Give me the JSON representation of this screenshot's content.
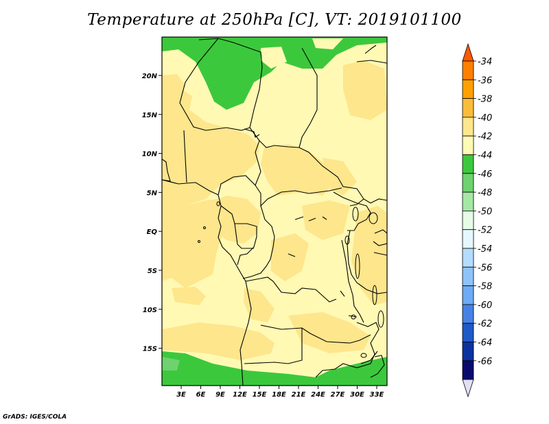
{
  "title": "Temperature at 250hPa [C], VT: 2019101100",
  "footer": "GrADS: IGES/COLA",
  "lat_labels": [
    "20N",
    "15N",
    "10N",
    "5N",
    "EQ",
    "5S",
    "10S",
    "15S"
  ],
  "lon_labels": [
    "3E",
    "6E",
    "9E",
    "12E",
    "15E",
    "18E",
    "21E",
    "24E",
    "27E",
    "30E",
    "33E"
  ],
  "colorbar": {
    "labels": [
      "-34",
      "-36",
      "-38",
      "-40",
      "-42",
      "-44",
      "-46",
      "-48",
      "-50",
      "-52",
      "-54",
      "-56",
      "-58",
      "-60",
      "-62",
      "-64",
      "-66"
    ],
    "colors": [
      "#ff5a00",
      "#ff8000",
      "#ffa000",
      "#f9bd3a",
      "#fde68c",
      "#fffab4",
      "#3cc83c",
      "#6ed26e",
      "#a4e8a4",
      "#e6fce6",
      "#e6f8ff",
      "#b4dcff",
      "#8cc4fa",
      "#6eaaf5",
      "#4682e6",
      "#1e5ac8",
      "#0a32a0",
      "#0a0a6e",
      "#e0e0f8"
    ]
  },
  "map": {
    "fill_colors": {
      "background": "#fff9b4",
      "warm": "#fde68c",
      "green": "#3cc83c",
      "light_green": "#6ed26e"
    }
  }
}
